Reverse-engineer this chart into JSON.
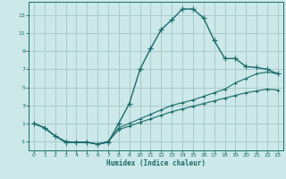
{
  "xlabel": "Humidex (Indice chaleur)",
  "background_color": "#cce8e8",
  "grid_color": "#aacaca",
  "line_color": "#1a6b6b",
  "xlim": [
    -0.5,
    23.5
  ],
  "ylim": [
    -2.0,
    14.5
  ],
  "xticks": [
    0,
    1,
    2,
    3,
    4,
    5,
    6,
    7,
    8,
    9,
    10,
    11,
    12,
    13,
    14,
    15,
    16,
    17,
    18,
    19,
    20,
    21,
    22,
    23
  ],
  "yticks": [
    -1,
    1,
    3,
    5,
    7,
    9,
    11,
    13
  ],
  "line1_x": [
    0,
    1,
    2,
    3,
    4,
    5,
    6,
    7,
    8,
    9,
    10,
    11,
    12,
    13,
    14,
    15,
    16,
    17,
    18,
    19,
    20,
    21,
    22,
    23
  ],
  "line1_y": [
    1.0,
    0.5,
    -0.4,
    -1.1,
    -1.1,
    -1.1,
    -1.3,
    -1.1,
    1.0,
    3.2,
    7.0,
    9.3,
    11.4,
    12.5,
    13.7,
    13.7,
    12.7,
    10.2,
    8.2,
    8.2,
    7.3,
    7.2,
    7.0,
    6.5
  ],
  "line2_x": [
    0,
    1,
    2,
    3,
    4,
    5,
    6,
    7,
    8,
    9,
    10,
    11,
    12,
    13,
    14,
    15,
    16,
    17,
    18,
    19,
    20,
    21,
    22,
    23
  ],
  "line2_y": [
    1.0,
    0.5,
    -0.4,
    -1.1,
    -1.1,
    -1.1,
    -1.3,
    -1.1,
    0.5,
    1.0,
    1.5,
    2.0,
    2.5,
    3.0,
    3.3,
    3.6,
    4.0,
    4.4,
    4.8,
    5.5,
    6.0,
    6.5,
    6.7,
    6.5
  ],
  "line3_x": [
    0,
    1,
    2,
    3,
    4,
    5,
    6,
    7,
    8,
    9,
    10,
    11,
    12,
    13,
    14,
    15,
    16,
    17,
    18,
    19,
    20,
    21,
    22,
    23
  ],
  "line3_y": [
    1.0,
    0.5,
    -0.4,
    -1.0,
    -1.1,
    -1.1,
    -1.3,
    -1.0,
    0.3,
    0.7,
    1.1,
    1.5,
    1.9,
    2.3,
    2.6,
    2.9,
    3.2,
    3.5,
    3.8,
    4.1,
    4.4,
    4.6,
    4.8,
    4.7
  ]
}
